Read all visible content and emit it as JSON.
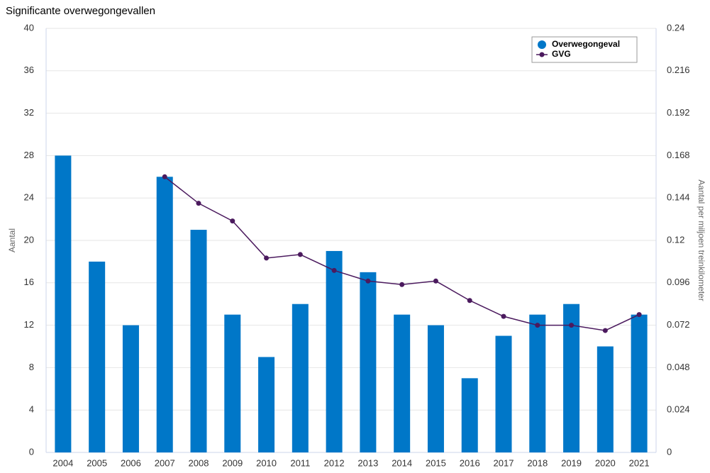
{
  "chart_data": {
    "type": "bar_line",
    "title": "Significante overwegongevallen",
    "ylabel": "Aantal",
    "y2label": "Aantal per miljoen treinkilometer",
    "categories": [
      "2004",
      "2005",
      "2006",
      "2007",
      "2008",
      "2009",
      "2010",
      "2011",
      "2012",
      "2013",
      "2014",
      "2015",
      "2016",
      "2017",
      "2018",
      "2019",
      "2020",
      "2021"
    ],
    "series": [
      {
        "name": "Overwegongeval",
        "type": "bar",
        "color": "#0077c8",
        "values": [
          28,
          18,
          12,
          26,
          21,
          13,
          9,
          14,
          19,
          17,
          13,
          12,
          7,
          11,
          13,
          14,
          10,
          13
        ]
      },
      {
        "name": "GVG",
        "type": "line",
        "axis": "y2",
        "color": "#4b1a5e",
        "values": [
          null,
          null,
          null,
          0.156,
          0.141,
          0.131,
          0.11,
          0.112,
          0.103,
          0.097,
          0.095,
          0.097,
          0.086,
          0.077,
          0.072,
          0.072,
          0.069,
          0.078
        ]
      }
    ],
    "ylim": [
      0,
      40
    ],
    "yticks": [
      0,
      4,
      8,
      12,
      16,
      20,
      24,
      28,
      32,
      36,
      40
    ],
    "y2lim": [
      0,
      0.24
    ],
    "y2ticks": [
      0,
      0.024,
      0.048,
      0.072,
      0.096,
      0.12,
      0.144,
      0.168,
      0.192,
      0.216,
      0.24
    ],
    "grid": true,
    "legend": "top-right"
  }
}
